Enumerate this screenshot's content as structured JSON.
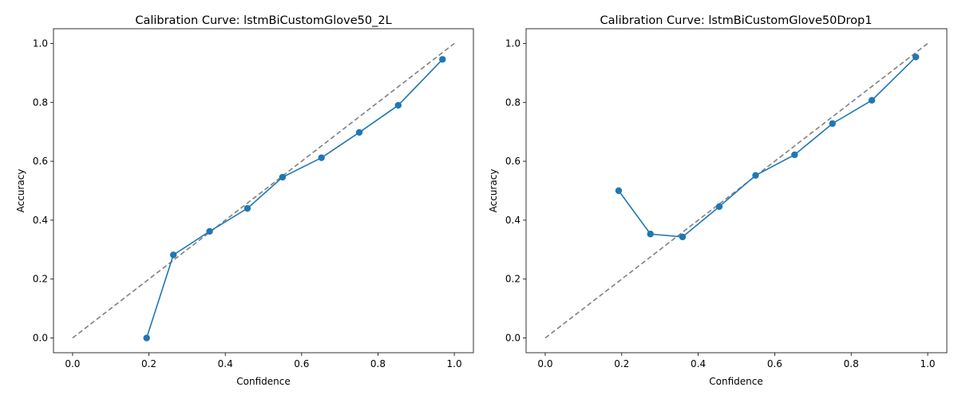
{
  "chart_data": [
    {
      "type": "line",
      "title": "Calibration Curve: lstmBiCustomGlove50_2L",
      "xlabel": "Confidence",
      "ylabel": "Accuracy",
      "xlim": [
        -0.05,
        1.05
      ],
      "ylim": [
        -0.05,
        1.05
      ],
      "xticks": [
        "0.0",
        "0.2",
        "0.4",
        "0.6",
        "0.8",
        "1.0"
      ],
      "yticks": [
        "0.0",
        "0.2",
        "0.4",
        "0.6",
        "0.8",
        "1.0"
      ],
      "grid": false,
      "reference_line": {
        "x": [
          0,
          1
        ],
        "y": [
          0,
          1
        ],
        "style": "dashed",
        "color": "#808080"
      },
      "series": [
        {
          "color": "#1f77b4",
          "marker": "circle",
          "x": [
            0.194,
            0.264,
            0.359,
            0.458,
            0.55,
            0.652,
            0.751,
            0.853,
            0.969
          ],
          "y": [
            0.0,
            0.282,
            0.362,
            0.44,
            0.546,
            0.612,
            0.698,
            0.79,
            0.946
          ]
        }
      ]
    },
    {
      "type": "line",
      "title": "Calibration Curve: lstmBiCustomGlove50Drop1",
      "xlabel": "Confidence",
      "ylabel": "Accuracy",
      "xlim": [
        -0.05,
        1.05
      ],
      "ylim": [
        -0.05,
        1.05
      ],
      "xticks": [
        "0.0",
        "0.2",
        "0.4",
        "0.6",
        "0.8",
        "1.0"
      ],
      "yticks": [
        "0.0",
        "0.2",
        "0.4",
        "0.6",
        "0.8",
        "1.0"
      ],
      "grid": false,
      "reference_line": {
        "x": [
          0,
          1
        ],
        "y": [
          0,
          1
        ],
        "style": "dashed",
        "color": "#808080"
      },
      "series": [
        {
          "color": "#1f77b4",
          "marker": "circle",
          "x": [
            0.192,
            0.275,
            0.359,
            0.455,
            0.55,
            0.652,
            0.751,
            0.854,
            0.969
          ],
          "y": [
            0.5,
            0.353,
            0.343,
            0.446,
            0.552,
            0.622,
            0.728,
            0.807,
            0.954
          ]
        }
      ]
    }
  ]
}
